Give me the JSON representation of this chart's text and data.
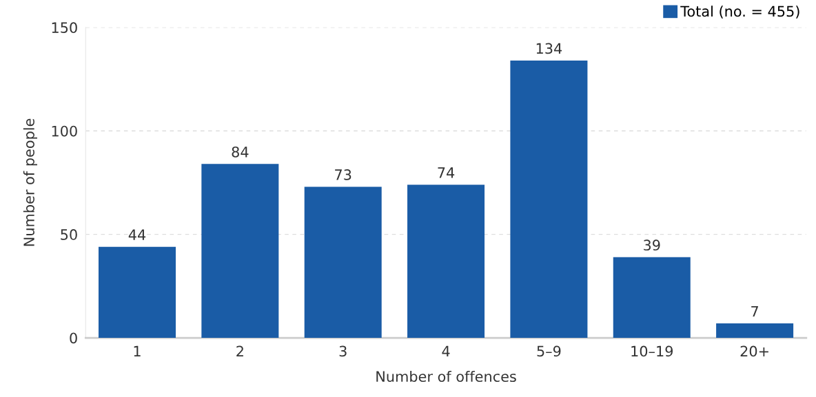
{
  "chart_data": {
    "type": "bar",
    "xlabel": "Number of offences",
    "ylabel": "Number of people",
    "categories": [
      "1",
      "2",
      "3",
      "4",
      "5–9",
      "10–19",
      "20+"
    ],
    "series": [
      {
        "name": "Total (no. = 455)",
        "color": "#1a5ca6",
        "values": [
          44,
          84,
          73,
          74,
          134,
          39,
          7
        ]
      }
    ],
    "ylim": [
      0,
      150
    ],
    "yticks": [
      0,
      50,
      100,
      150
    ],
    "grid": "y",
    "legend": "top right",
    "data_labels": true
  }
}
